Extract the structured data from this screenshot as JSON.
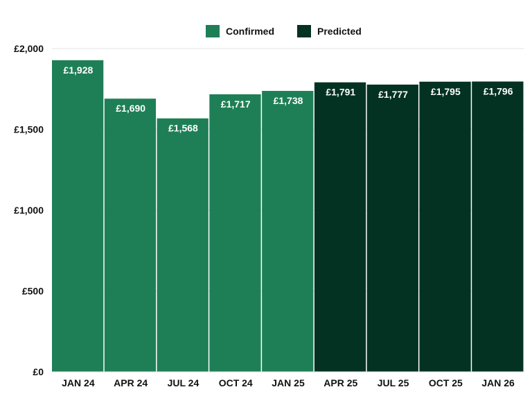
{
  "chart_data": {
    "type": "bar",
    "title": "",
    "xlabel": "",
    "ylabel": "",
    "categories": [
      "JAN 24",
      "APR 24",
      "JUL 24",
      "OCT 24",
      "JAN 25",
      "APR 25",
      "JUL 25",
      "OCT 25",
      "JAN 26"
    ],
    "values": [
      1928,
      1690,
      1568,
      1717,
      1738,
      1791,
      1777,
      1795,
      1796
    ],
    "value_labels": [
      "£1,928",
      "£1,690",
      "£1,568",
      "£1,717",
      "£1,738",
      "£1,791",
      "£1,777",
      "£1,795",
      "£1,796"
    ],
    "status": [
      "Confirmed",
      "Confirmed",
      "Confirmed",
      "Confirmed",
      "Confirmed",
      "Predicted",
      "Predicted",
      "Predicted",
      "Predicted"
    ],
    "ylim": [
      0,
      2000
    ],
    "yticks": [
      0,
      500,
      1000,
      1500,
      2000
    ],
    "ytick_labels": [
      "£0",
      "£500",
      "£1,000",
      "£1,500",
      "£2,000"
    ],
    "grid": true,
    "legend_position": "top-center",
    "legend": [
      {
        "label": "Confirmed",
        "color": "#1e7f56"
      },
      {
        "label": "Predicted",
        "color": "#033222"
      }
    ],
    "colors": {
      "Confirmed": "#1e7f56",
      "Predicted": "#033222",
      "label_text": "#ffffff",
      "axis_text": "#111111",
      "grid": "#e6e6e6"
    }
  }
}
